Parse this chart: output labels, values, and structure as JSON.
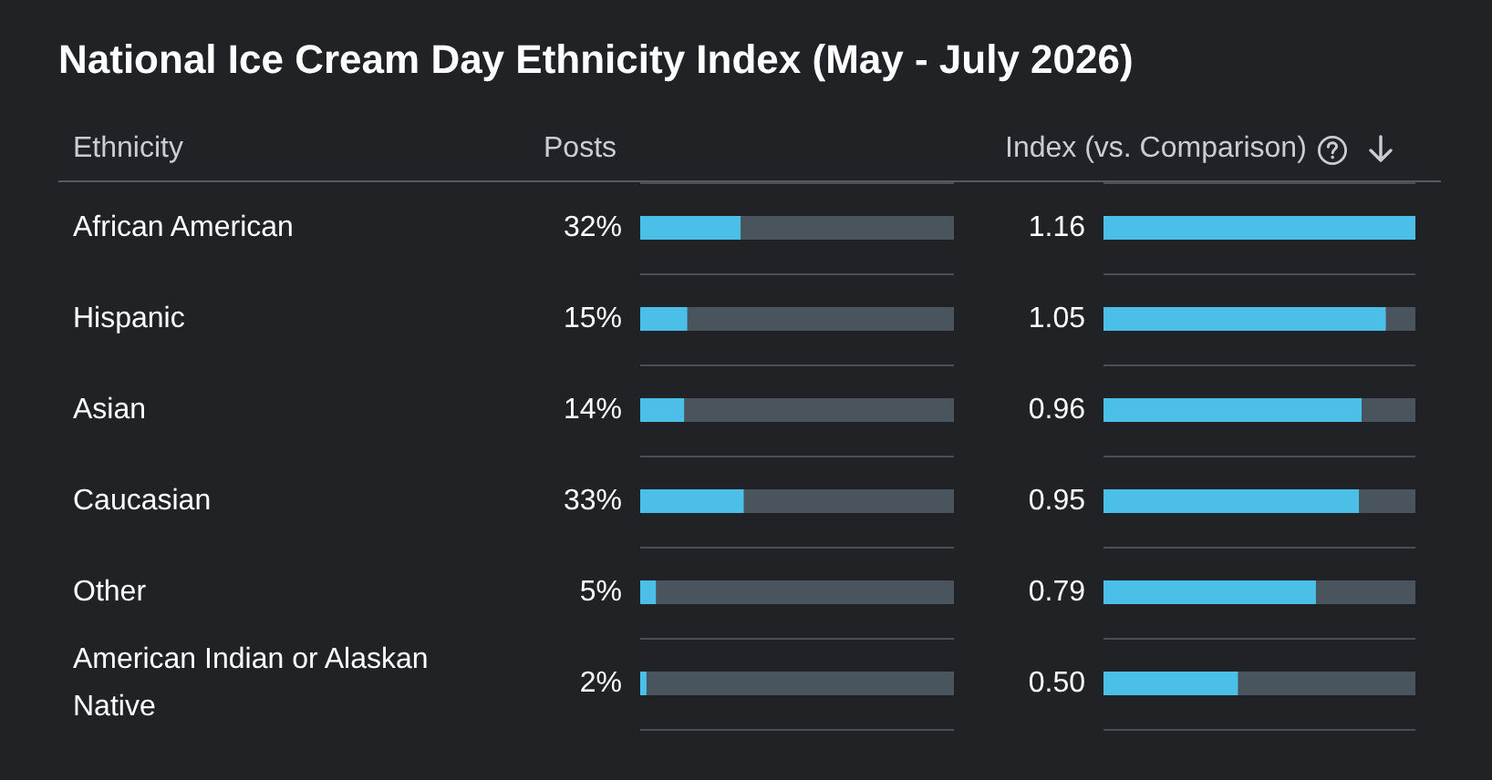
{
  "chart_data": [
    {
      "type": "bar",
      "orientation": "horizontal",
      "title": "National Ice Cream Day Ethnicity Index (May - July 2026)",
      "ylabel": "Ethnicity",
      "xlabel": "Posts",
      "categories": [
        "African American",
        "Hispanic",
        "Asian",
        "Caucasian",
        "Other",
        "American Indian or Alaskan Native"
      ],
      "values": [
        32,
        15,
        14,
        33,
        5,
        2
      ],
      "value_labels": [
        "32%",
        "15%",
        "14%",
        "33%",
        "5%",
        "2%"
      ],
      "color": "#4bbfe8",
      "xlim": [
        0,
        100
      ],
      "tick_labels": "y",
      "grid": "y"
    },
    {
      "type": "bar",
      "orientation": "horizontal",
      "xlabel": "Index (vs. Comparison)",
      "categories": [
        null,
        null,
        null,
        null,
        null,
        null
      ],
      "values": [
        1.16,
        1.05,
        0.96,
        0.95,
        0.79,
        0.5
      ],
      "value_labels": [
        "1.16",
        "1.05",
        "0.96",
        "0.95",
        "0.79",
        "0.50"
      ],
      "color": "#4bbfe8",
      "xlim": [
        0,
        1.16
      ],
      "tick_labels": "y",
      "grid": "y"
    }
  ]
}
